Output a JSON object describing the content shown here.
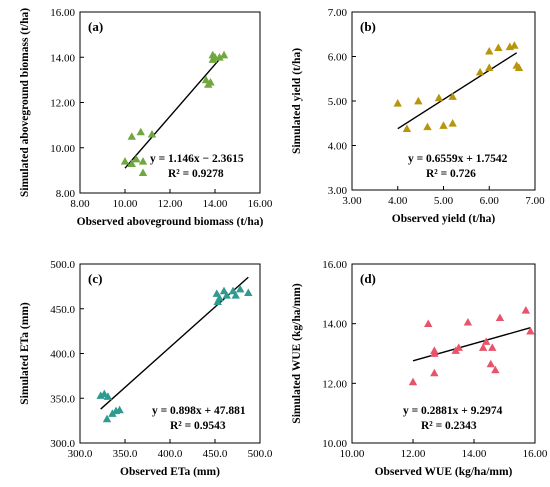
{
  "chart_data": [
    {
      "type": "scatter",
      "panel_label": "(a)",
      "xlabel": "Observed aboveground biomass (t/ha)",
      "ylabel": "Simulated aboveground biomass (t/ha)",
      "xlim": [
        8,
        16
      ],
      "ylim": [
        8,
        16
      ],
      "xticks": [
        8,
        10,
        12,
        14,
        16
      ],
      "yticks": [
        8,
        10,
        12,
        14,
        16
      ],
      "tick_labels_x": [
        "8.00",
        "10.00",
        "12.00",
        "14.00",
        "16.00"
      ],
      "tick_labels_y": [
        "8.00",
        "10.00",
        "12.00",
        "14.00",
        "16.00"
      ],
      "marker_color": "#70a83f",
      "points": [
        [
          10.0,
          9.4
        ],
        [
          10.3,
          10.5
        ],
        [
          10.3,
          9.3
        ],
        [
          10.5,
          9.5
        ],
        [
          10.7,
          10.7
        ],
        [
          10.8,
          9.4
        ],
        [
          10.8,
          8.9
        ],
        [
          11.2,
          10.6
        ],
        [
          13.6,
          13.0
        ],
        [
          13.7,
          12.8
        ],
        [
          13.8,
          12.9
        ],
        [
          13.9,
          14.1
        ],
        [
          13.9,
          13.9
        ],
        [
          14.0,
          14.0
        ],
        [
          14.2,
          14.0
        ],
        [
          14.4,
          14.1
        ]
      ],
      "fit": {
        "slope": 1.146,
        "intercept": -2.3615,
        "x_range": [
          10.0,
          14.4
        ]
      },
      "equation": "y = 1.146x − 2.3615",
      "r2": "R² = 0.9278"
    },
    {
      "type": "scatter",
      "panel_label": "(b)",
      "xlabel": "Observed yield (t/ha)",
      "ylabel": "Simulated yield (t/ha)",
      "xlim": [
        3,
        7
      ],
      "ylim": [
        3,
        7
      ],
      "xticks": [
        3,
        4,
        5,
        6,
        7
      ],
      "yticks": [
        3,
        4,
        5,
        6,
        7
      ],
      "tick_labels_x": [
        "3.00",
        "4.00",
        "5.00",
        "6.00",
        "7.00"
      ],
      "tick_labels_y": [
        "3.00",
        "4.00",
        "5.00",
        "6.00",
        "7.00"
      ],
      "marker_color": "#b8960b",
      "points": [
        [
          4.0,
          4.95
        ],
        [
          4.2,
          4.38
        ],
        [
          4.45,
          5.0
        ],
        [
          4.65,
          4.42
        ],
        [
          4.9,
          5.07
        ],
        [
          5.0,
          4.45
        ],
        [
          5.2,
          4.5
        ],
        [
          5.2,
          5.1
        ],
        [
          5.8,
          5.65
        ],
        [
          6.0,
          6.12
        ],
        [
          6.0,
          5.75
        ],
        [
          6.2,
          6.2
        ],
        [
          6.45,
          6.22
        ],
        [
          6.55,
          6.25
        ],
        [
          6.6,
          5.8
        ],
        [
          6.65,
          5.75
        ]
      ],
      "fit": {
        "slope": 0.6559,
        "intercept": 1.7542,
        "x_range": [
          4.0,
          6.6
        ]
      },
      "equation": "y = 0.6559x + 1.7542",
      "r2": "R² = 0.726"
    },
    {
      "type": "scatter",
      "panel_label": "(c)",
      "xlabel": "Observed ETa (mm)",
      "ylabel": "Simulated ETa (mm)",
      "xlim": [
        300,
        500
      ],
      "ylim": [
        300,
        500
      ],
      "xticks": [
        300,
        350,
        400,
        450,
        500
      ],
      "yticks": [
        300,
        350,
        400,
        450,
        500
      ],
      "tick_labels_x": [
        "300.0",
        "350.0",
        "400.0",
        "450.0",
        "500.0"
      ],
      "tick_labels_y": [
        "300.0",
        "350.0",
        "400.0",
        "450.0",
        "500.0"
      ],
      "marker_color": "#2f9a8f",
      "points": [
        [
          323,
          353
        ],
        [
          327,
          355
        ],
        [
          330,
          327
        ],
        [
          331,
          352
        ],
        [
          336,
          333
        ],
        [
          340,
          336
        ],
        [
          344,
          337
        ],
        [
          452,
          467
        ],
        [
          453,
          458
        ],
        [
          455,
          462
        ],
        [
          460,
          470
        ],
        [
          463,
          465
        ],
        [
          470,
          470
        ],
        [
          473,
          465
        ],
        [
          478,
          472
        ],
        [
          487,
          468
        ]
      ],
      "fit": {
        "slope": 0.898,
        "intercept": 47.881,
        "x_range": [
          323,
          487
        ]
      },
      "equation": "y = 0.898x + 47.881",
      "r2": "R² = 0.9543"
    },
    {
      "type": "scatter",
      "panel_label": "(d)",
      "xlabel": "Observed WUE (kg/ha/mm)",
      "ylabel": "Simulated WUE (kg/ha/mm)",
      "xlim": [
        10,
        16
      ],
      "ylim": [
        10,
        16
      ],
      "xticks": [
        10,
        12,
        14,
        16
      ],
      "yticks": [
        10,
        12,
        14,
        16
      ],
      "tick_labels_x": [
        "10.00",
        "12.00",
        "14.00",
        "16.00"
      ],
      "tick_labels_y": [
        "10.00",
        "12.00",
        "14.00",
        "16.00"
      ],
      "marker_color": "#e8536a",
      "points": [
        [
          12.0,
          12.05
        ],
        [
          12.5,
          14.0
        ],
        [
          12.7,
          13.1
        ],
        [
          12.7,
          13.0
        ],
        [
          12.7,
          12.35
        ],
        [
          13.4,
          13.1
        ],
        [
          13.5,
          13.2
        ],
        [
          13.8,
          14.05
        ],
        [
          14.3,
          13.2
        ],
        [
          14.4,
          13.4
        ],
        [
          14.55,
          12.65
        ],
        [
          14.6,
          13.2
        ],
        [
          14.7,
          12.45
        ],
        [
          14.85,
          14.2
        ],
        [
          15.7,
          14.45
        ],
        [
          15.85,
          13.75
        ]
      ],
      "fit": {
        "slope": 0.2881,
        "intercept": 9.2974,
        "x_range": [
          12.0,
          15.85
        ]
      },
      "equation": "y = 0.2881x + 9.2974",
      "r2": "R² = 0.2343"
    }
  ]
}
